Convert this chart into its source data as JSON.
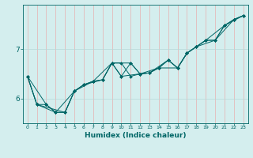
{
  "xlabel": "Humidex (Indice chaleur)",
  "bg_color": "#d4eeee",
  "line_color": "#006666",
  "hgrid_color": "#b8d8d8",
  "vgrid_color": "#e8b0b0",
  "xlim": [
    -0.5,
    23.5
  ],
  "ylim": [
    5.5,
    7.9
  ],
  "yticks": [
    6,
    7
  ],
  "xticks": [
    0,
    1,
    2,
    3,
    4,
    5,
    6,
    7,
    8,
    9,
    10,
    11,
    12,
    13,
    14,
    15,
    16,
    17,
    18,
    19,
    20,
    21,
    22,
    23
  ],
  "series1": [
    [
      0,
      6.45
    ],
    [
      1,
      5.88
    ],
    [
      2,
      5.88
    ],
    [
      3,
      5.72
    ],
    [
      4,
      5.72
    ],
    [
      5,
      6.15
    ],
    [
      6,
      6.28
    ],
    [
      7,
      6.35
    ],
    [
      8,
      6.38
    ],
    [
      9,
      6.72
    ],
    [
      10,
      6.72
    ],
    [
      11,
      6.45
    ],
    [
      12,
      6.5
    ],
    [
      13,
      6.52
    ],
    [
      14,
      6.62
    ],
    [
      15,
      6.78
    ],
    [
      16,
      6.62
    ],
    [
      17,
      6.92
    ],
    [
      18,
      7.05
    ],
    [
      19,
      7.18
    ],
    [
      20,
      7.18
    ],
    [
      21,
      7.48
    ],
    [
      22,
      7.6
    ],
    [
      23,
      7.68
    ]
  ],
  "series2": [
    [
      0,
      6.45
    ],
    [
      1,
      5.88
    ],
    [
      3,
      5.72
    ],
    [
      4,
      5.72
    ],
    [
      5,
      6.15
    ],
    [
      6,
      6.28
    ],
    [
      8,
      6.38
    ],
    [
      9,
      6.72
    ],
    [
      10,
      6.45
    ],
    [
      11,
      6.72
    ],
    [
      12,
      6.5
    ],
    [
      14,
      6.62
    ],
    [
      15,
      6.78
    ],
    [
      16,
      6.62
    ],
    [
      17,
      6.92
    ],
    [
      19,
      7.18
    ],
    [
      20,
      7.18
    ],
    [
      22,
      7.6
    ],
    [
      23,
      7.68
    ]
  ],
  "series3": [
    [
      0,
      6.45
    ],
    [
      2,
      5.88
    ],
    [
      3,
      5.72
    ],
    [
      5,
      6.15
    ],
    [
      6,
      6.28
    ],
    [
      7,
      6.35
    ],
    [
      9,
      6.72
    ],
    [
      10,
      6.45
    ],
    [
      12,
      6.5
    ],
    [
      13,
      6.52
    ],
    [
      15,
      6.78
    ],
    [
      16,
      6.62
    ],
    [
      17,
      6.92
    ],
    [
      18,
      7.05
    ],
    [
      20,
      7.18
    ],
    [
      21,
      7.48
    ],
    [
      23,
      7.68
    ]
  ],
  "series4": [
    [
      0,
      6.45
    ],
    [
      1,
      5.88
    ],
    [
      4,
      5.72
    ],
    [
      5,
      6.15
    ],
    [
      7,
      6.35
    ],
    [
      8,
      6.38
    ],
    [
      9,
      6.72
    ],
    [
      11,
      6.72
    ],
    [
      12,
      6.5
    ],
    [
      13,
      6.52
    ],
    [
      14,
      6.62
    ],
    [
      16,
      6.62
    ],
    [
      17,
      6.92
    ],
    [
      18,
      7.05
    ],
    [
      19,
      7.18
    ],
    [
      21,
      7.48
    ],
    [
      22,
      7.6
    ],
    [
      23,
      7.68
    ]
  ]
}
